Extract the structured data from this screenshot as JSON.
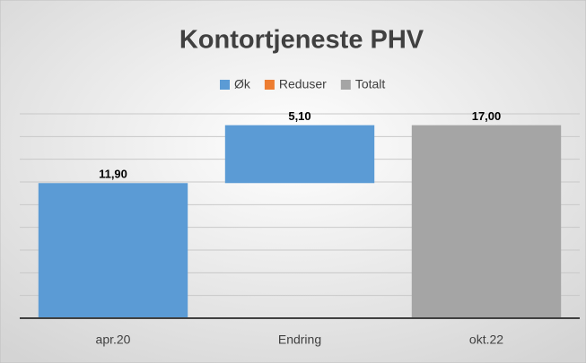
{
  "chart_data": {
    "type": "waterfall",
    "title": "Kontortjeneste PHV",
    "categories": [
      "apr.20",
      "Endring",
      "okt.22"
    ],
    "series": [
      {
        "name": "Øk",
        "color": "#5b9bd5",
        "values": [
          11.9,
          5.1,
          null
        ],
        "value_labels": [
          "11,90",
          "5,10",
          null
        ]
      },
      {
        "name": "Reduser",
        "color": "#ed7d31",
        "values": [
          null,
          null,
          null
        ],
        "value_labels": [
          null,
          null,
          null
        ]
      },
      {
        "name": "Totalt",
        "color": "#a5a5a5",
        "values": [
          null,
          null,
          17.0
        ],
        "value_labels": [
          null,
          null,
          "17,00"
        ]
      }
    ],
    "ylim": [
      0,
      18
    ],
    "yticks": [
      0,
      2,
      4,
      6,
      8,
      10,
      12,
      14,
      16,
      18
    ],
    "grid": true,
    "legend": "top"
  }
}
